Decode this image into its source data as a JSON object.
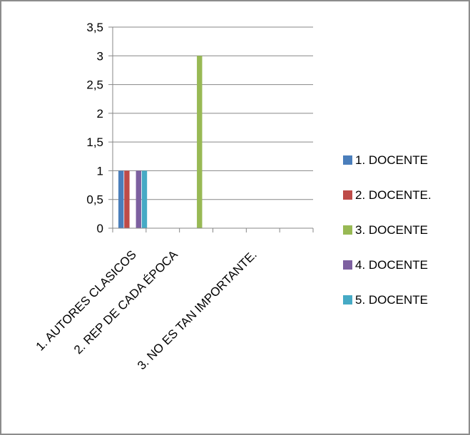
{
  "chart_data": {
    "type": "bar",
    "categories": [
      "1. AUTORES CLASICOS",
      "2.  REP DE CADA ÉPOCA",
      "3.  NO ES TAN IMPORTANTE."
    ],
    "series": [
      {
        "name": "1. DOCENTE",
        "color": "#4a7ebb",
        "values": [
          1,
          0,
          0
        ]
      },
      {
        "name": "2. DOCENTE.",
        "color": "#be4b48",
        "values": [
          1,
          0,
          0
        ]
      },
      {
        "name": "3. DOCENTE",
        "color": "#98b954",
        "values": [
          0,
          3,
          0
        ]
      },
      {
        "name": "4. DOCENTE",
        "color": "#7d60a0",
        "values": [
          1,
          0,
          0
        ]
      },
      {
        "name": "5. DOCENTE",
        "color": "#46aac5",
        "values": [
          1,
          0,
          0
        ]
      }
    ],
    "yticks": [
      "0",
      "0,5",
      "1",
      "1,5",
      "2",
      "2,5",
      "3",
      "3,5"
    ],
    "ylim": [
      0,
      3.5
    ],
    "grid": true,
    "legend_position": "right"
  }
}
